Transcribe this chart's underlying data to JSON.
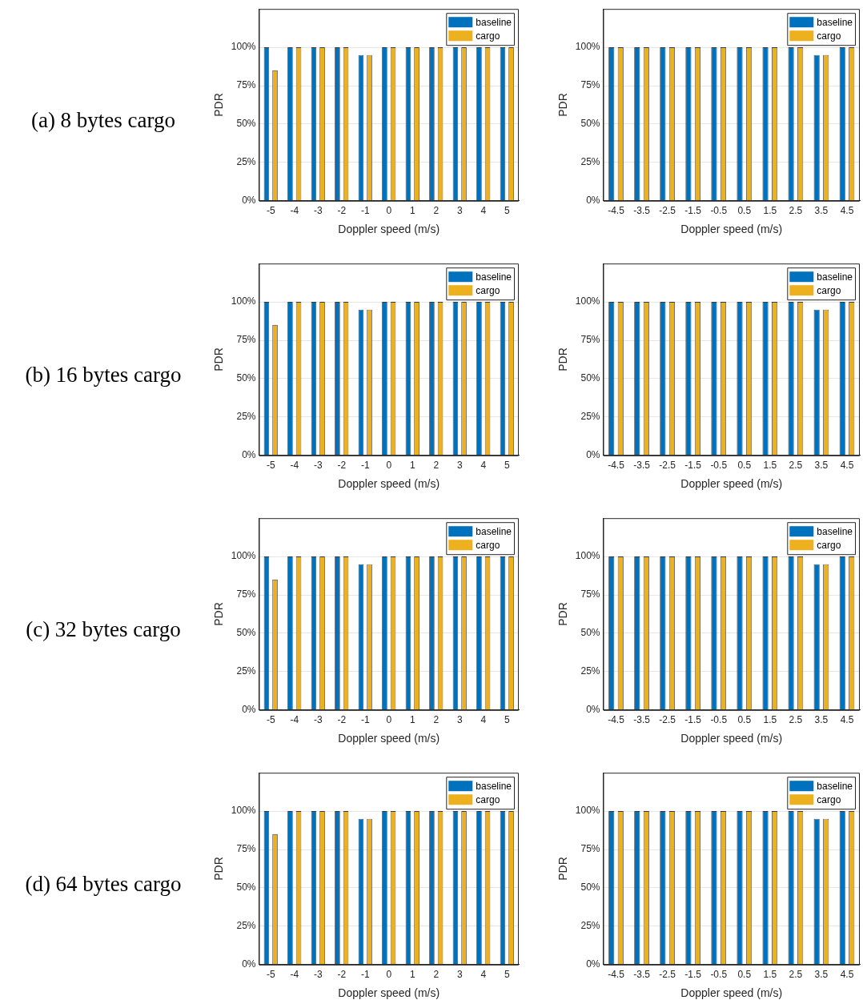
{
  "chart_data": [
    {
      "type": "bar",
      "title": "(a) 8 bytes cargo",
      "xlabel": "Doppler speed (m/s)",
      "ylabel": "PDR",
      "categories": [
        "-5",
        "-4",
        "-3",
        "-2",
        "-1",
        "0",
        "1",
        "2",
        "3",
        "4",
        "5"
      ],
      "series": [
        {
          "name": "baseline",
          "color": "#0072bd",
          "values": [
            100,
            100,
            100,
            100,
            95,
            100,
            100,
            100,
            100,
            100,
            100
          ]
        },
        {
          "name": "cargo",
          "color": "#edb120",
          "values": [
            85,
            100,
            100,
            100,
            95,
            100,
            100,
            100,
            100,
            100,
            100
          ]
        }
      ],
      "ylim": [
        0,
        125
      ],
      "yticks": [
        {
          "value": 0,
          "label": "0%"
        },
        {
          "value": 25,
          "label": "25%"
        },
        {
          "value": 50,
          "label": "50%"
        },
        {
          "value": 75,
          "label": "75%"
        },
        {
          "value": 100,
          "label": "100%"
        }
      ],
      "grid": "y",
      "legend": "top right"
    },
    {
      "type": "bar",
      "xlabel": "Doppler speed (m/s)",
      "ylabel": "PDR",
      "categories": [
        "-4.5",
        "-3.5",
        "-2.5",
        "-1.5",
        "-0.5",
        "0.5",
        "1.5",
        "2.5",
        "3.5",
        "4.5"
      ],
      "series": [
        {
          "name": "baseline",
          "color": "#0072bd",
          "values": [
            100,
            100,
            100,
            100,
            100,
            100,
            100,
            100,
            95,
            100
          ]
        },
        {
          "name": "cargo",
          "color": "#edb120",
          "values": [
            100,
            100,
            100,
            100,
            100,
            100,
            100,
            100,
            95,
            100
          ]
        }
      ],
      "ylim": [
        0,
        125
      ],
      "yticks": [
        {
          "value": 0,
          "label": "0%"
        },
        {
          "value": 25,
          "label": "25%"
        },
        {
          "value": 50,
          "label": "50%"
        },
        {
          "value": 75,
          "label": "75%"
        },
        {
          "value": 100,
          "label": "100%"
        }
      ],
      "grid": "y",
      "legend": "top right"
    },
    {
      "type": "bar",
      "title": "(b) 16 bytes cargo",
      "xlabel": "Doppler speed (m/s)",
      "ylabel": "PDR",
      "categories": [
        "-5",
        "-4",
        "-3",
        "-2",
        "-1",
        "0",
        "1",
        "2",
        "3",
        "4",
        "5"
      ],
      "series": [
        {
          "name": "baseline",
          "color": "#0072bd",
          "values": [
            100,
            100,
            100,
            100,
            95,
            100,
            100,
            100,
            100,
            100,
            100
          ]
        },
        {
          "name": "cargo",
          "color": "#edb120",
          "values": [
            85,
            100,
            100,
            100,
            95,
            100,
            100,
            100,
            100,
            100,
            100
          ]
        }
      ],
      "ylim": [
        0,
        125
      ],
      "yticks": [
        {
          "value": 0,
          "label": "0%"
        },
        {
          "value": 25,
          "label": "25%"
        },
        {
          "value": 50,
          "label": "50%"
        },
        {
          "value": 75,
          "label": "75%"
        },
        {
          "value": 100,
          "label": "100%"
        }
      ],
      "grid": "y",
      "legend": "top right"
    },
    {
      "type": "bar",
      "xlabel": "Doppler speed (m/s)",
      "ylabel": "PDR",
      "categories": [
        "-4.5",
        "-3.5",
        "-2.5",
        "-1.5",
        "-0.5",
        "0.5",
        "1.5",
        "2.5",
        "3.5",
        "4.5"
      ],
      "series": [
        {
          "name": "baseline",
          "color": "#0072bd",
          "values": [
            100,
            100,
            100,
            100,
            100,
            100,
            100,
            100,
            95,
            100
          ]
        },
        {
          "name": "cargo",
          "color": "#edb120",
          "values": [
            100,
            100,
            100,
            100,
            100,
            100,
            100,
            100,
            95,
            100
          ]
        }
      ],
      "ylim": [
        0,
        125
      ],
      "yticks": [
        {
          "value": 0,
          "label": "0%"
        },
        {
          "value": 25,
          "label": "25%"
        },
        {
          "value": 50,
          "label": "50%"
        },
        {
          "value": 75,
          "label": "75%"
        },
        {
          "value": 100,
          "label": "100%"
        }
      ],
      "grid": "y",
      "legend": "top right"
    },
    {
      "type": "bar",
      "title": "(c) 32 bytes cargo",
      "xlabel": "Doppler speed (m/s)",
      "ylabel": "PDR",
      "categories": [
        "-5",
        "-4",
        "-3",
        "-2",
        "-1",
        "0",
        "1",
        "2",
        "3",
        "4",
        "5"
      ],
      "series": [
        {
          "name": "baseline",
          "color": "#0072bd",
          "values": [
            100,
            100,
            100,
            100,
            95,
            100,
            100,
            100,
            100,
            100,
            100
          ]
        },
        {
          "name": "cargo",
          "color": "#edb120",
          "values": [
            85,
            100,
            100,
            100,
            95,
            100,
            100,
            100,
            100,
            100,
            100
          ]
        }
      ],
      "ylim": [
        0,
        125
      ],
      "yticks": [
        {
          "value": 0,
          "label": "0%"
        },
        {
          "value": 25,
          "label": "25%"
        },
        {
          "value": 50,
          "label": "50%"
        },
        {
          "value": 75,
          "label": "75%"
        },
        {
          "value": 100,
          "label": "100%"
        }
      ],
      "grid": "y",
      "legend": "top right"
    },
    {
      "type": "bar",
      "xlabel": "Doppler speed (m/s)",
      "ylabel": "PDR",
      "categories": [
        "-4.5",
        "-3.5",
        "-2.5",
        "-1.5",
        "-0.5",
        "0.5",
        "1.5",
        "2.5",
        "3.5",
        "4.5"
      ],
      "series": [
        {
          "name": "baseline",
          "color": "#0072bd",
          "values": [
            100,
            100,
            100,
            100,
            100,
            100,
            100,
            100,
            95,
            100
          ]
        },
        {
          "name": "cargo",
          "color": "#edb120",
          "values": [
            100,
            100,
            100,
            100,
            100,
            100,
            100,
            100,
            95,
            100
          ]
        }
      ],
      "ylim": [
        0,
        125
      ],
      "yticks": [
        {
          "value": 0,
          "label": "0%"
        },
        {
          "value": 25,
          "label": "25%"
        },
        {
          "value": 50,
          "label": "50%"
        },
        {
          "value": 75,
          "label": "75%"
        },
        {
          "value": 100,
          "label": "100%"
        }
      ],
      "grid": "y",
      "legend": "top right"
    },
    {
      "type": "bar",
      "title": "(d) 64 bytes cargo",
      "xlabel": "Doppler speed (m/s)",
      "ylabel": "PDR",
      "categories": [
        "-5",
        "-4",
        "-3",
        "-2",
        "-1",
        "0",
        "1",
        "2",
        "3",
        "4",
        "5"
      ],
      "series": [
        {
          "name": "baseline",
          "color": "#0072bd",
          "values": [
            100,
            100,
            100,
            100,
            95,
            100,
            100,
            100,
            100,
            100,
            100
          ]
        },
        {
          "name": "cargo",
          "color": "#edb120",
          "values": [
            85,
            100,
            100,
            100,
            95,
            100,
            100,
            100,
            100,
            100,
            100
          ]
        }
      ],
      "ylim": [
        0,
        125
      ],
      "yticks": [
        {
          "value": 0,
          "label": "0%"
        },
        {
          "value": 25,
          "label": "25%"
        },
        {
          "value": 50,
          "label": "50%"
        },
        {
          "value": 75,
          "label": "75%"
        },
        {
          "value": 100,
          "label": "100%"
        }
      ],
      "grid": "y",
      "legend": "top right"
    },
    {
      "type": "bar",
      "xlabel": "Doppler speed (m/s)",
      "ylabel": "PDR",
      "categories": [
        "-4.5",
        "-3.5",
        "-2.5",
        "-1.5",
        "-0.5",
        "0.5",
        "1.5",
        "2.5",
        "3.5",
        "4.5"
      ],
      "series": [
        {
          "name": "baseline",
          "color": "#0072bd",
          "values": [
            100,
            100,
            100,
            100,
            100,
            100,
            100,
            100,
            95,
            100
          ]
        },
        {
          "name": "cargo",
          "color": "#edb120",
          "values": [
            100,
            100,
            100,
            100,
            100,
            100,
            100,
            100,
            95,
            100
          ]
        }
      ],
      "ylim": [
        0,
        125
      ],
      "yticks": [
        {
          "value": 0,
          "label": "0%"
        },
        {
          "value": 25,
          "label": "25%"
        },
        {
          "value": 50,
          "label": "50%"
        },
        {
          "value": 75,
          "label": "75%"
        },
        {
          "value": 100,
          "label": "100%"
        }
      ],
      "grid": "y",
      "legend": "top right"
    }
  ]
}
